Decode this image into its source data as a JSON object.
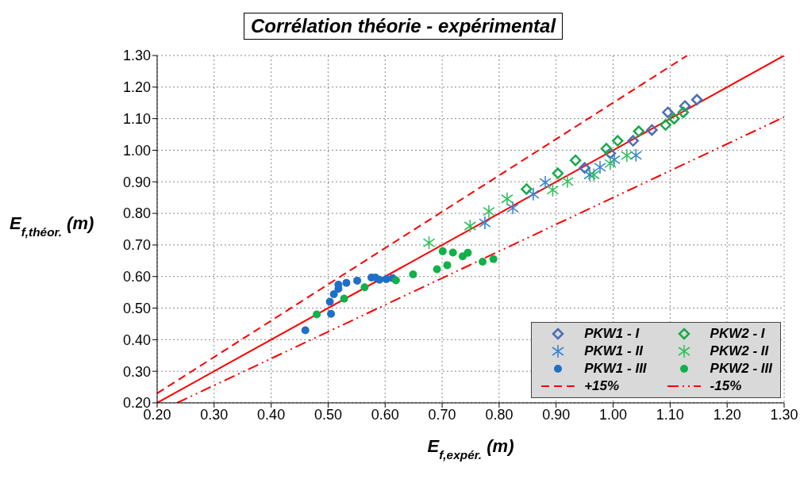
{
  "chart_data": {
    "type": "scatter",
    "title": "Corrélation théorie - expérimental",
    "xlabel": "E$_{f,expér.}$ (m)",
    "ylabel": "E$_{f,théor.}$ (m)",
    "xlim": [
      0.2,
      1.3
    ],
    "ylim": [
      0.2,
      1.3
    ],
    "xticks": [
      {
        "value": 0.2,
        "label": "0.20"
      },
      {
        "value": 0.3,
        "label": "0.30"
      },
      {
        "value": 0.4,
        "label": "0.40"
      },
      {
        "value": 0.5,
        "label": "0.50"
      },
      {
        "value": 0.6,
        "label": "0.60"
      },
      {
        "value": 0.7,
        "label": "0.70"
      },
      {
        "value": 0.8,
        "label": "0.80"
      },
      {
        "value": 0.9,
        "label": "0.90"
      },
      {
        "value": 1.0,
        "label": "1.00"
      },
      {
        "value": 1.1,
        "label": "1.10"
      },
      {
        "value": 1.2,
        "label": "1.20"
      },
      {
        "value": 1.3,
        "label": "1.30"
      }
    ],
    "yticks": [
      {
        "value": 0.2,
        "label": "0.20"
      },
      {
        "value": 0.3,
        "label": "0.30"
      },
      {
        "value": 0.4,
        "label": "0.40"
      },
      {
        "value": 0.5,
        "label": "0.50"
      },
      {
        "value": 0.6,
        "label": "0.60"
      },
      {
        "value": 0.7,
        "label": "0.70"
      },
      {
        "value": 0.8,
        "label": "0.80"
      },
      {
        "value": 0.9,
        "label": "0.90"
      },
      {
        "value": 1.0,
        "label": "1.00"
      },
      {
        "value": 1.1,
        "label": "1.10"
      },
      {
        "value": 1.2,
        "label": "1.20"
      },
      {
        "value": 1.3,
        "label": "1.30"
      }
    ],
    "grid": true,
    "legend": "bottom right",
    "series": [
      {
        "name": "PKW1 - I",
        "marker": "diamond",
        "color": "#4a6fb0",
        "x": [
          0.95,
          0.995,
          1.035,
          1.068,
          1.096,
          1.126,
          1.147
        ],
        "values": [
          0.944,
          0.99,
          1.03,
          1.064,
          1.12,
          1.14,
          1.16
        ]
      },
      {
        "name": "PKW1 - II",
        "marker": "cross",
        "color": "#3a86d0",
        "x": [
          0.775,
          0.824,
          0.86,
          0.881,
          0.959,
          0.977,
          1.002,
          1.04
        ],
        "values": [
          0.77,
          0.817,
          0.861,
          0.898,
          0.922,
          0.946,
          0.97,
          0.984
        ]
      },
      {
        "name": "PKW1 - III",
        "marker": "circle",
        "color": "#1f6fc8",
        "x": [
          0.46,
          0.505,
          0.503,
          0.51,
          0.518,
          0.518,
          0.532,
          0.551,
          0.576,
          0.583,
          0.59,
          0.602,
          0.613
        ],
        "values": [
          0.43,
          0.482,
          0.52,
          0.544,
          0.561,
          0.574,
          0.58,
          0.587,
          0.597,
          0.597,
          0.59,
          0.592,
          0.595
        ]
      },
      {
        "name": "+15%",
        "type": "line",
        "marker": "none",
        "line_style": "dashed",
        "color": "#ff0000",
        "x": [
          0.2,
          1.13
        ],
        "values": [
          0.23,
          1.3
        ]
      },
      {
        "name": "PKW2 - I",
        "marker": "diamond",
        "color": "#1aa84c",
        "x": [
          0.848,
          0.903,
          0.934,
          0.988,
          1.008,
          1.045,
          1.092,
          1.107,
          1.123
        ],
        "values": [
          0.877,
          0.927,
          0.968,
          1.005,
          1.03,
          1.06,
          1.08,
          1.1,
          1.12
        ]
      },
      {
        "name": "PKW2 - II",
        "marker": "cross",
        "color": "#33c060",
        "x": [
          0.677,
          0.749,
          0.782,
          0.814,
          0.894,
          0.92,
          0.966,
          0.995,
          1.024
        ],
        "values": [
          0.707,
          0.76,
          0.806,
          0.846,
          0.874,
          0.901,
          0.922,
          0.958,
          0.983
        ]
      },
      {
        "name": "PKW2 - III",
        "marker": "circle",
        "color": "#12b04a",
        "x": [
          0.48,
          0.528,
          0.564,
          0.619,
          0.649,
          0.691,
          0.709,
          0.701,
          0.719,
          0.736,
          0.745,
          0.771,
          0.79
        ],
        "values": [
          0.48,
          0.53,
          0.566,
          0.588,
          0.607,
          0.623,
          0.636,
          0.68,
          0.676,
          0.664,
          0.675,
          0.647,
          0.655
        ]
      },
      {
        "name": "-15%",
        "type": "line",
        "marker": "none",
        "line_style": "dotted",
        "color": "#ff0000",
        "x": [
          0.235,
          1.3
        ],
        "values": [
          0.2,
          1.105
        ]
      },
      {
        "type": "line",
        "marker": "none",
        "line_style": "solid",
        "color": "#ff0000",
        "x": [
          0.2,
          1.3
        ],
        "values": [
          0.2,
          1.3
        ]
      }
    ]
  }
}
